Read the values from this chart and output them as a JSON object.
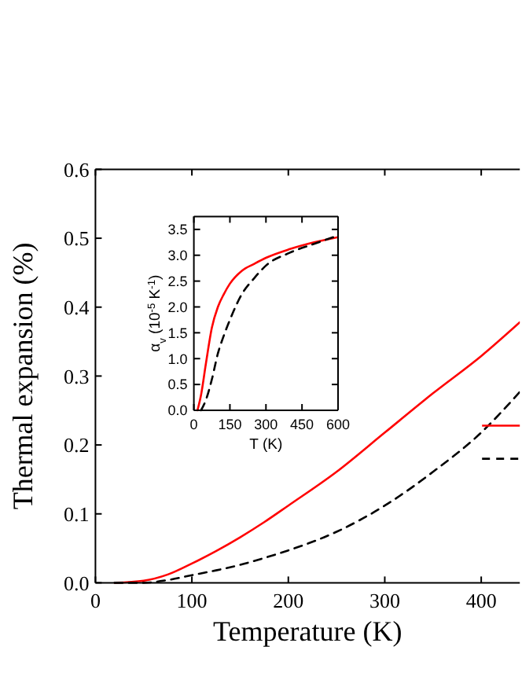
{
  "chart_data": [
    {
      "type": "line",
      "xlabel": "Temperature (K)",
      "ylabel": "Thermal expansion (%)",
      "xlim": [
        0,
        440
      ],
      "ylim": [
        0,
        0.6
      ],
      "xticks": [
        0,
        100,
        200,
        300,
        400
      ],
      "yticks": [
        {
          "value": 0,
          "label": "0.0"
        },
        {
          "value": 0.1,
          "label": "0.1"
        },
        {
          "value": 0.2,
          "label": "0.2"
        },
        {
          "value": 0.3,
          "label": "0.3"
        },
        {
          "value": 0.4,
          "label": "0.4"
        },
        {
          "value": 0.5,
          "label": "0.5"
        },
        {
          "value": 0.6,
          "label": "0.6"
        }
      ],
      "series": [
        {
          "color": "#ff0000",
          "line_style": "solid",
          "x": [
            20,
            50,
            75,
            100,
            125,
            150,
            175,
            200,
            250,
            300,
            350,
            400,
            440
          ],
          "values": [
            0,
            0.003,
            0.012,
            0.028,
            0.046,
            0.066,
            0.088,
            0.112,
            0.161,
            0.218,
            0.275,
            0.329,
            0.378
          ]
        },
        {
          "color": "#000000",
          "line_style": "dashed",
          "x": [
            20,
            50,
            75,
            100,
            125,
            150,
            175,
            200,
            250,
            300,
            350,
            400,
            440
          ],
          "values": [
            0,
            0,
            0.004,
            0.011,
            0.018,
            0.026,
            0.036,
            0.047,
            0.074,
            0.112,
            0.161,
            0.218,
            0.277
          ]
        }
      ]
    },
    {
      "type": "line",
      "xlabel": "T (K)",
      "ylabel": "α$_{v}$ (10$^{-5}$ K$^{-1}$)",
      "xlim": [
        0,
        600
      ],
      "ylim": [
        0,
        3.75
      ],
      "xticks": [
        0,
        150,
        300,
        450,
        600
      ],
      "yticks": [
        {
          "value": 0,
          "label": "0.0"
        },
        {
          "value": 0.5,
          "label": "0.5"
        },
        {
          "value": 1,
          "label": "1.0"
        },
        {
          "value": 1.5,
          "label": "1.5"
        },
        {
          "value": 2,
          "label": "2.0"
        },
        {
          "value": 2.5,
          "label": "2.5"
        },
        {
          "value": 3,
          "label": "3.0"
        },
        {
          "value": 3.5,
          "label": "3.5"
        }
      ],
      "series": [
        {
          "color": "#ff0000",
          "line_style": "solid",
          "x": [
            15,
            30,
            50,
            75,
            100,
            125,
            150,
            200,
            250,
            300,
            400,
            500,
            600
          ],
          "values": [
            0,
            0.3,
            0.9,
            1.6,
            2.0,
            2.25,
            2.45,
            2.7,
            2.83,
            2.95,
            3.12,
            3.25,
            3.35
          ]
        },
        {
          "color": "#000000",
          "line_style": "dashed",
          "x": [
            30,
            50,
            75,
            100,
            125,
            150,
            200,
            250,
            300,
            400,
            500,
            600
          ],
          "values": [
            0,
            0.2,
            0.6,
            1.1,
            1.45,
            1.75,
            2.25,
            2.55,
            2.8,
            3.05,
            3.22,
            3.38
          ]
        }
      ]
    }
  ]
}
